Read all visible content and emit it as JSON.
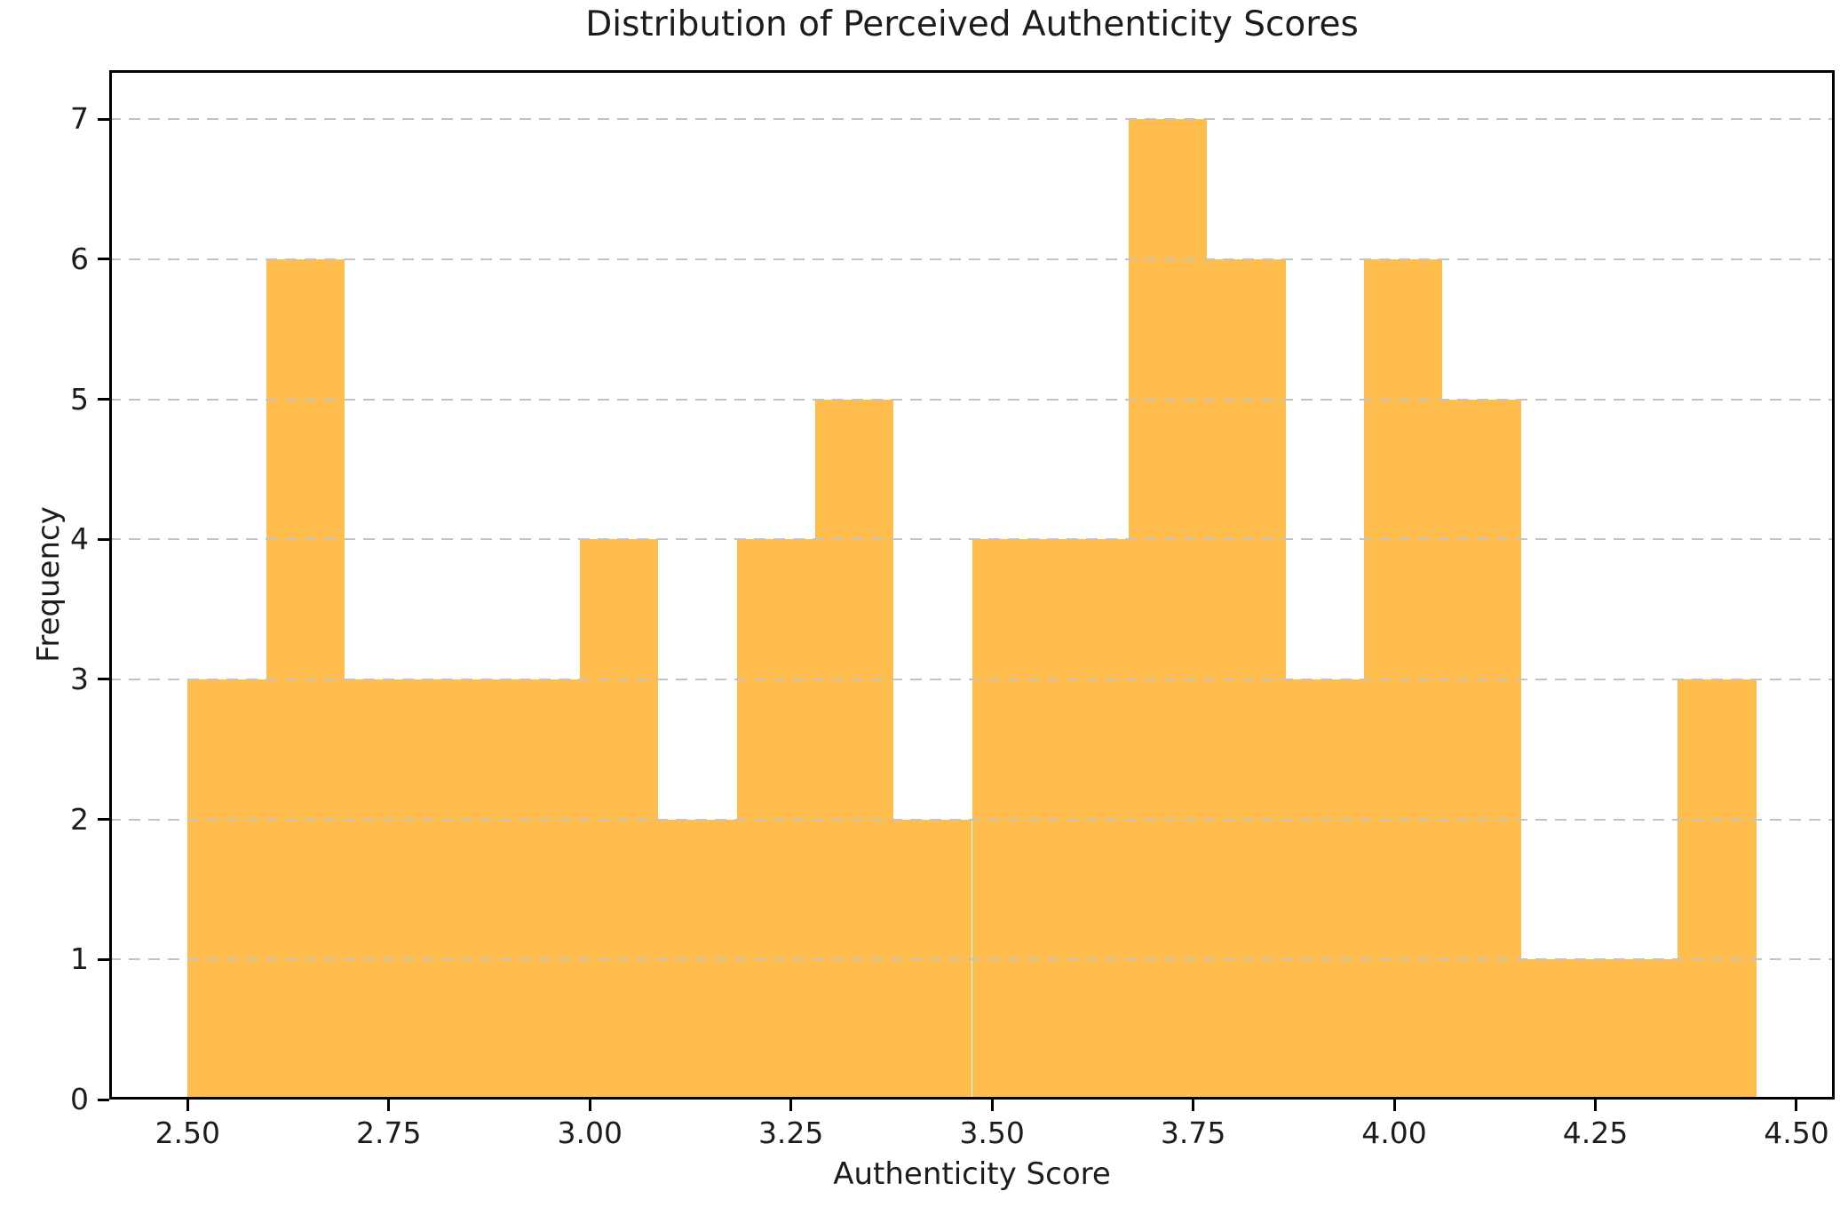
{
  "figure": {
    "title": "Distribution of Perceived Authenticity Scores",
    "xlabel": "Authenticity Score",
    "ylabel": "Frequency"
  },
  "chart_data": {
    "type": "bar",
    "subtype": "histogram",
    "title": "Distribution of Perceived Authenticity Scores",
    "xlabel": "Authenticity Score",
    "ylabel": "Frequency",
    "bin_start": 2.5,
    "bin_width": 0.0975,
    "bin_count": 20,
    "bin_edges": [
      2.5,
      2.5975,
      2.695,
      2.7925,
      2.89,
      2.9875,
      3.085,
      3.1825,
      3.28,
      3.3775,
      3.475,
      3.5725,
      3.67,
      3.7675,
      3.865,
      3.9625,
      4.06,
      4.1575,
      4.255,
      4.3525,
      4.45
    ],
    "frequencies": [
      3,
      6,
      3,
      3,
      3,
      4,
      2,
      4,
      5,
      2,
      4,
      4,
      7,
      6,
      3,
      6,
      5,
      1,
      1,
      3
    ],
    "total_observations": 75,
    "x_ticks": [
      {
        "value": 2.5,
        "label": "2.50"
      },
      {
        "value": 2.75,
        "label": "2.75"
      },
      {
        "value": 3.0,
        "label": "3.00"
      },
      {
        "value": 3.25,
        "label": "3.25"
      },
      {
        "value": 3.5,
        "label": "3.50"
      },
      {
        "value": 3.75,
        "label": "3.75"
      },
      {
        "value": 4.0,
        "label": "4.00"
      },
      {
        "value": 4.25,
        "label": "4.25"
      },
      {
        "value": 4.5,
        "label": "4.50"
      }
    ],
    "y_ticks": [
      {
        "value": 0,
        "label": "0"
      },
      {
        "value": 1,
        "label": "1"
      },
      {
        "value": 2,
        "label": "2"
      },
      {
        "value": 3,
        "label": "3"
      },
      {
        "value": 4,
        "label": "4"
      },
      {
        "value": 5,
        "label": "5"
      },
      {
        "value": 6,
        "label": "6"
      },
      {
        "value": 7,
        "label": "7"
      }
    ],
    "xlim": [
      2.4025,
      4.5475
    ],
    "ylim": [
      0,
      7.35
    ],
    "grid": {
      "axis": "y",
      "style": "dashed",
      "on": true,
      "above_bars": true
    },
    "legend": null,
    "colors": {
      "bar": "#febd4d",
      "grid": "#c3c3c3",
      "spine": "#000000",
      "text": "#1c1c1c",
      "background": "#ffffff"
    }
  }
}
